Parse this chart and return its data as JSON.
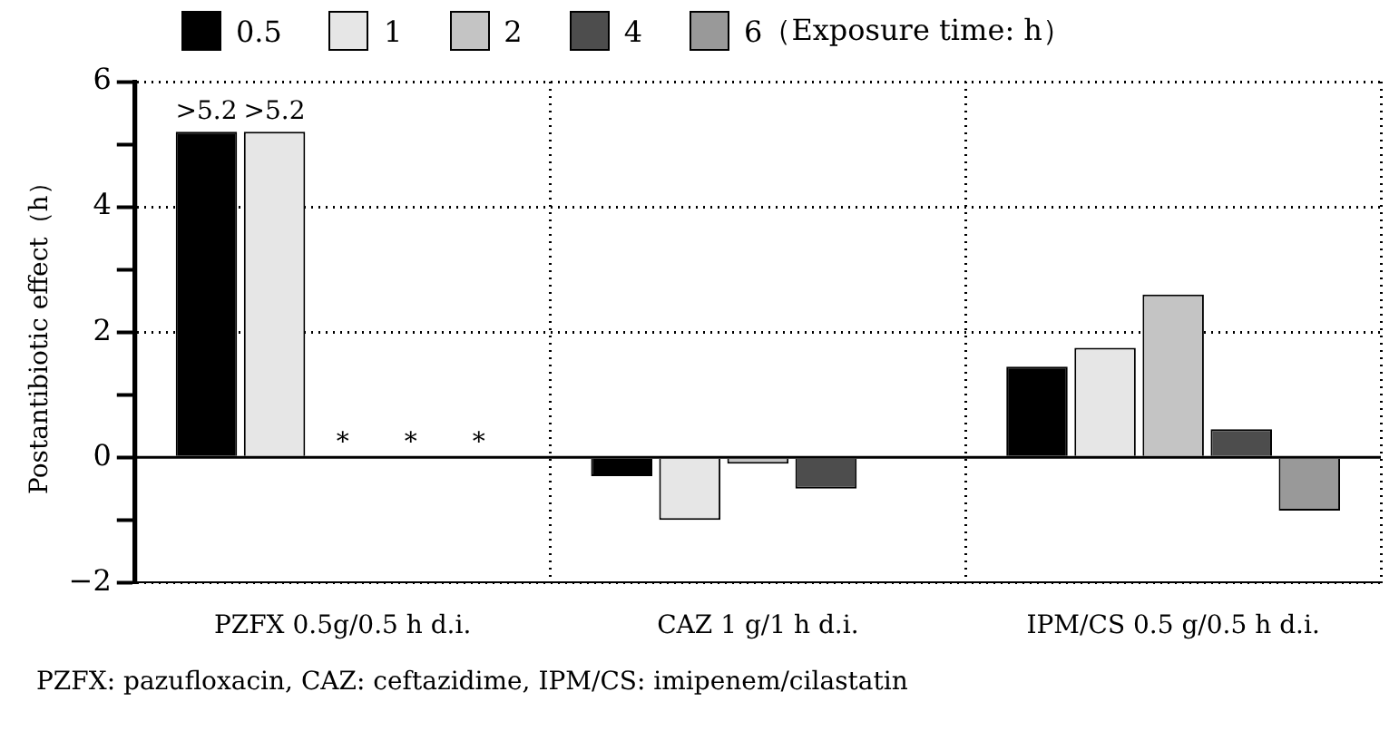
{
  "chart_data": {
    "type": "bar",
    "ylabel": "Postantibiotic effect（h）",
    "legend_title": "（Exposure time: h）",
    "categories": [
      "PZFX 0.5g/0.5 h d.i.",
      "CAZ 1 g/1 h d.i.",
      "IPM/CS 0.5 g/0.5 h d.i."
    ],
    "series": [
      {
        "name": "0.5",
        "color": "#000000",
        "values": [
          5.2,
          -0.3,
          1.45
        ],
        "value_labels": [
          ">5.2",
          null,
          null
        ]
      },
      {
        "name": "1",
        "color": "#e6e6e6",
        "values": [
          5.2,
          -1.0,
          1.75
        ],
        "value_labels": [
          ">5.2",
          null,
          null
        ]
      },
      {
        "name": "2",
        "color": "#c4c4c4",
        "values": [
          null,
          -0.1,
          2.6
        ],
        "value_labels": [
          "*",
          null,
          null
        ]
      },
      {
        "name": "4",
        "color": "#4d4d4d",
        "values": [
          null,
          -0.5,
          0.45
        ],
        "value_labels": [
          "*",
          null,
          null
        ]
      },
      {
        "name": "6",
        "color": "#999999",
        "values": [
          null,
          null,
          -0.85
        ],
        "value_labels": [
          "*",
          null,
          null
        ]
      }
    ],
    "ylim": [
      -2,
      6
    ],
    "yticks": [
      {
        "value": -2,
        "label": "−2"
      },
      {
        "value": -1,
        "label": null
      },
      0,
      {
        "value": 1,
        "label": null
      },
      2,
      {
        "value": 3,
        "label": null
      },
      4,
      {
        "value": 5,
        "label": null
      },
      6
    ],
    "ref_lines": [
      {
        "axis": "y",
        "value": 0,
        "color": "#000000",
        "line_style": "solid"
      }
    ],
    "grid": true,
    "legend": "top",
    "annotations": [
      "PZFX: pazufloxacin, CAZ: ceftazidime, IPM/CS: imipenem/cilastatin"
    ]
  }
}
